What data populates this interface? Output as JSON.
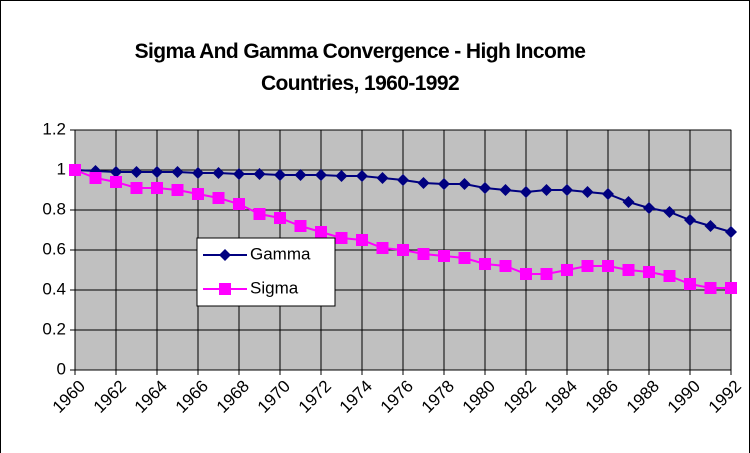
{
  "chart_data": {
    "type": "line",
    "title": "Sigma And Gamma Convergence - High Income Countries, 1960-1992",
    "categories": [
      "1960",
      null,
      "1962",
      null,
      "1964",
      null,
      "1966",
      null,
      "1968",
      null,
      "1970",
      null,
      "1972",
      null,
      "1974",
      null,
      "1976",
      null,
      "1978",
      null,
      "1980",
      null,
      "1982",
      null,
      "1984",
      null,
      "1986",
      null,
      "1988",
      null,
      "1990",
      null,
      "1992"
    ],
    "series": [
      {
        "name": "Gamma",
        "color": "#000080",
        "marker": "diamond",
        "values": [
          1.0,
          0.995,
          0.99,
          0.99,
          0.99,
          0.99,
          0.985,
          0.985,
          0.98,
          0.98,
          0.975,
          0.975,
          0.975,
          0.97,
          0.97,
          0.96,
          0.95,
          0.935,
          0.93,
          0.93,
          0.91,
          0.9,
          0.89,
          0.9,
          0.9,
          0.89,
          0.88,
          0.84,
          0.81,
          0.79,
          0.75,
          0.72,
          0.69
        ]
      },
      {
        "name": "Sigma",
        "color": "#ff00ff",
        "marker": "square",
        "values": [
          1.0,
          0.96,
          0.94,
          0.91,
          0.91,
          0.9,
          0.88,
          0.86,
          0.83,
          0.78,
          0.76,
          0.72,
          0.69,
          0.66,
          0.65,
          0.61,
          0.6,
          0.58,
          0.57,
          0.56,
          0.53,
          0.52,
          0.48,
          0.48,
          0.5,
          0.52,
          0.52,
          0.5,
          0.49,
          0.47,
          0.43,
          0.41,
          0.41
        ]
      }
    ],
    "ylim": [
      0,
      1.2
    ],
    "yticks": [
      0,
      0.2,
      0.4,
      0.6,
      0.8,
      1,
      1.2
    ],
    "grid": true
  }
}
